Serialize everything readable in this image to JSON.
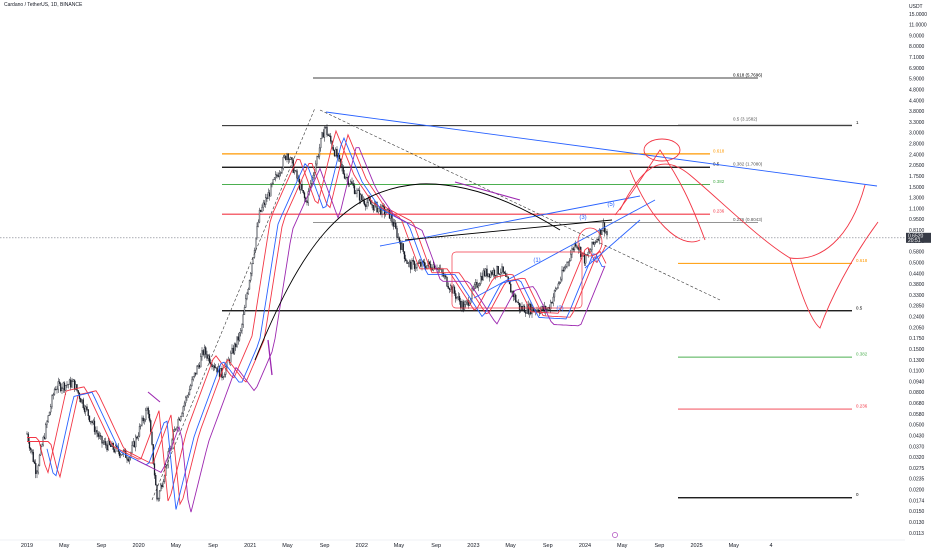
{
  "header": {
    "symbol_title": "Cardano / TetherUS, 1D, BINANCE",
    "currency": "USDT"
  },
  "current_price": {
    "value": "0.6520",
    "countdown": "20:51",
    "color": "#363a45"
  },
  "colors": {
    "bull": "#131722",
    "bear": "#131722",
    "blue_line": "#2962ff",
    "red_line": "#f23645",
    "orange_line": "#ff9800",
    "green_line": "#4caf50",
    "purple_line": "#9c27b0",
    "black_line": "#000000",
    "gray_line": "#555555"
  },
  "footer": {
    "icon": "tv-logo-icon"
  },
  "chart_data": {
    "type": "candlestick",
    "title": "Cardano / TetherUS, 1D, BINANCE",
    "yscale": "log",
    "ylabel": "USDT",
    "ylim": [
      0.011,
      15
    ],
    "y_ticks": [
      "15.0000",
      "11.0000",
      "9.0000",
      "8.0000",
      "7.1000",
      "6.9000",
      "5.9000",
      "4.8000",
      "4.4000",
      "3.8000",
      "3.3000",
      "3.0000",
      "2.8000",
      "2.4000",
      "2.0500",
      "1.7500",
      "1.5000",
      "1.3000",
      "1.1000",
      "0.9500",
      "0.8100",
      "0.6800",
      "0.5800",
      "0.5000",
      "0.4400",
      "0.3800",
      "0.3300",
      "0.2850",
      "0.2400",
      "0.2050",
      "0.1750",
      "0.1500",
      "0.1300",
      "0.1100",
      "0.0940",
      "0.0800",
      "0.0680",
      "0.0580",
      "0.0500",
      "0.0430",
      "0.0370",
      "0.0320",
      "0.0275",
      "0.0235",
      "0.0200",
      "0.0174",
      "0.0150",
      "0.0130",
      "0.0113"
    ],
    "x_ticks": [
      "2019",
      "May",
      "Sep",
      "2020",
      "May",
      "Sep",
      "2021",
      "May",
      "Sep",
      "2022",
      "May",
      "Sep",
      "2023",
      "May",
      "Sep",
      "2024",
      "May",
      "Sep",
      "2025",
      "May",
      "4"
    ],
    "ohlc_anchors": [
      {
        "t": "2019-01",
        "price": 0.045
      },
      {
        "t": "2019-02",
        "price": 0.027
      },
      {
        "t": "2019-04",
        "price": 0.085
      },
      {
        "t": "2019-06",
        "price": 0.09
      },
      {
        "t": "2019-09",
        "price": 0.04
      },
      {
        "t": "2019-12",
        "price": 0.033
      },
      {
        "t": "2020-02",
        "price": 0.065
      },
      {
        "t": "2020-03",
        "price": 0.018
      },
      {
        "t": "2020-05",
        "price": 0.05
      },
      {
        "t": "2020-08",
        "price": 0.14
      },
      {
        "t": "2020-10",
        "price": 0.1
      },
      {
        "t": "2020-12",
        "price": 0.18
      },
      {
        "t": "2021-02",
        "price": 0.9
      },
      {
        "t": "2021-05",
        "price": 2.1
      },
      {
        "t": "2021-07",
        "price": 1.05
      },
      {
        "t": "2021-09",
        "price": 2.97
      },
      {
        "t": "2021-11",
        "price": 1.6
      },
      {
        "t": "2022-01",
        "price": 1.1
      },
      {
        "t": "2022-04",
        "price": 0.9
      },
      {
        "t": "2022-06",
        "price": 0.45
      },
      {
        "t": "2022-09",
        "price": 0.45
      },
      {
        "t": "2022-12",
        "price": 0.25
      },
      {
        "t": "2023-02",
        "price": 0.4
      },
      {
        "t": "2023-04",
        "price": 0.42
      },
      {
        "t": "2023-06",
        "price": 0.25
      },
      {
        "t": "2023-09",
        "price": 0.245
      },
      {
        "t": "2023-12",
        "price": 0.62
      },
      {
        "t": "2024-01",
        "price": 0.48
      },
      {
        "t": "2024-03",
        "price": 0.78
      },
      {
        "t": "2024-03-15",
        "price": 0.652
      }
    ],
    "fib_levels": [
      {
        "label": "0.618 (5.7696)",
        "value": 5.77
      },
      {
        "label": "1",
        "value": 3.01
      },
      {
        "label": "0.5 (3.1582)",
        "value": 3.1582
      },
      {
        "label": "0.618",
        "value": 2.05
      },
      {
        "label": "0.5",
        "value": 1.708
      },
      {
        "label": "0.382 (1.7080)",
        "value": 1.708
      },
      {
        "label": "0.382",
        "value": 1.35
      },
      {
        "label": "0.236",
        "value": 0.9
      },
      {
        "label": "0.236 (0.8043)",
        "value": 0.8043
      },
      {
        "label": "0.618",
        "value": 0.46
      },
      {
        "label": "0.5",
        "value": 0.241
      },
      {
        "label": "0.382",
        "value": 0.128
      },
      {
        "label": "0.236",
        "value": 0.063
      },
      {
        "label": "0",
        "value": 0.0188
      }
    ],
    "wave_labels": [
      "(1)",
      "(2)",
      "(3)",
      "(4)",
      "(5)"
    ],
    "grid": false,
    "legend": "none"
  }
}
